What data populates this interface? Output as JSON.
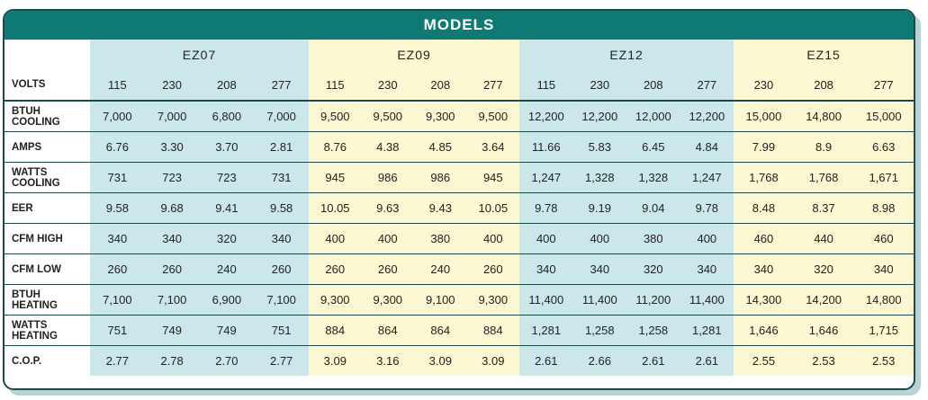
{
  "title": "MODELS",
  "volts_label": "VOLTS",
  "models": [
    {
      "name": "EZ07",
      "volts": [
        "115",
        "230",
        "208",
        "277"
      ]
    },
    {
      "name": "EZ09",
      "volts": [
        "115",
        "230",
        "208",
        "277"
      ]
    },
    {
      "name": "EZ12",
      "volts": [
        "115",
        "230",
        "208",
        "277"
      ]
    },
    {
      "name": "EZ15",
      "volts": [
        "230",
        "208",
        "277"
      ]
    }
  ],
  "rows": [
    {
      "label": "BTUH\nCOOLING",
      "values": [
        "7,000",
        "7,000",
        "6,800",
        "7,000",
        "9,500",
        "9,500",
        "9,300",
        "9,500",
        "12,200",
        "12,200",
        "12,000",
        "12,200",
        "15,000",
        "14,800",
        "15,000"
      ]
    },
    {
      "label": "AMPS",
      "values": [
        "6.76",
        "3.30",
        "3.70",
        "2.81",
        "8.76",
        "4.38",
        "4.85",
        "3.64",
        "11.66",
        "5.83",
        "6.45",
        "4.84",
        "7.99",
        "8.9",
        "6.63"
      ]
    },
    {
      "label": "WATTS\nCOOLING",
      "values": [
        "731",
        "723",
        "723",
        "731",
        "945",
        "986",
        "986",
        "945",
        "1,247",
        "1,328",
        "1,328",
        "1,247",
        "1,768",
        "1,768",
        "1,671"
      ]
    },
    {
      "label": "EER",
      "values": [
        "9.58",
        "9.68",
        "9.41",
        "9.58",
        "10.05",
        "9.63",
        "9.43",
        "10.05",
        "9.78",
        "9.19",
        "9.04",
        "9.78",
        "8.48",
        "8.37",
        "8.98"
      ]
    },
    {
      "label": "CFM HIGH",
      "values": [
        "340",
        "340",
        "320",
        "340",
        "400",
        "400",
        "380",
        "400",
        "400",
        "400",
        "380",
        "400",
        "460",
        "440",
        "460"
      ]
    },
    {
      "label": "CFM LOW",
      "values": [
        "260",
        "260",
        "240",
        "260",
        "260",
        "260",
        "240",
        "260",
        "340",
        "340",
        "320",
        "340",
        "340",
        "320",
        "340"
      ]
    },
    {
      "label": "BTUH\nHEATING",
      "values": [
        "7,100",
        "7,100",
        "6,900",
        "7,100",
        "9,300",
        "9,300",
        "9,100",
        "9,300",
        "11,400",
        "11,400",
        "11,200",
        "11,400",
        "14,300",
        "14,200",
        "14,800"
      ]
    },
    {
      "label": "WATTS\nHEATING",
      "values": [
        "751",
        "749",
        "749",
        "751",
        "884",
        "864",
        "864",
        "884",
        "1,281",
        "1,258",
        "1,258",
        "1,281",
        "1,646",
        "1,646",
        "1,715"
      ]
    },
    {
      "label": "C.O.P.",
      "values": [
        "2.77",
        "2.78",
        "2.70",
        "2.77",
        "3.09",
        "3.16",
        "3.09",
        "3.09",
        "2.61",
        "2.66",
        "2.61",
        "2.61",
        "2.55",
        "2.53",
        "2.53"
      ]
    }
  ]
}
